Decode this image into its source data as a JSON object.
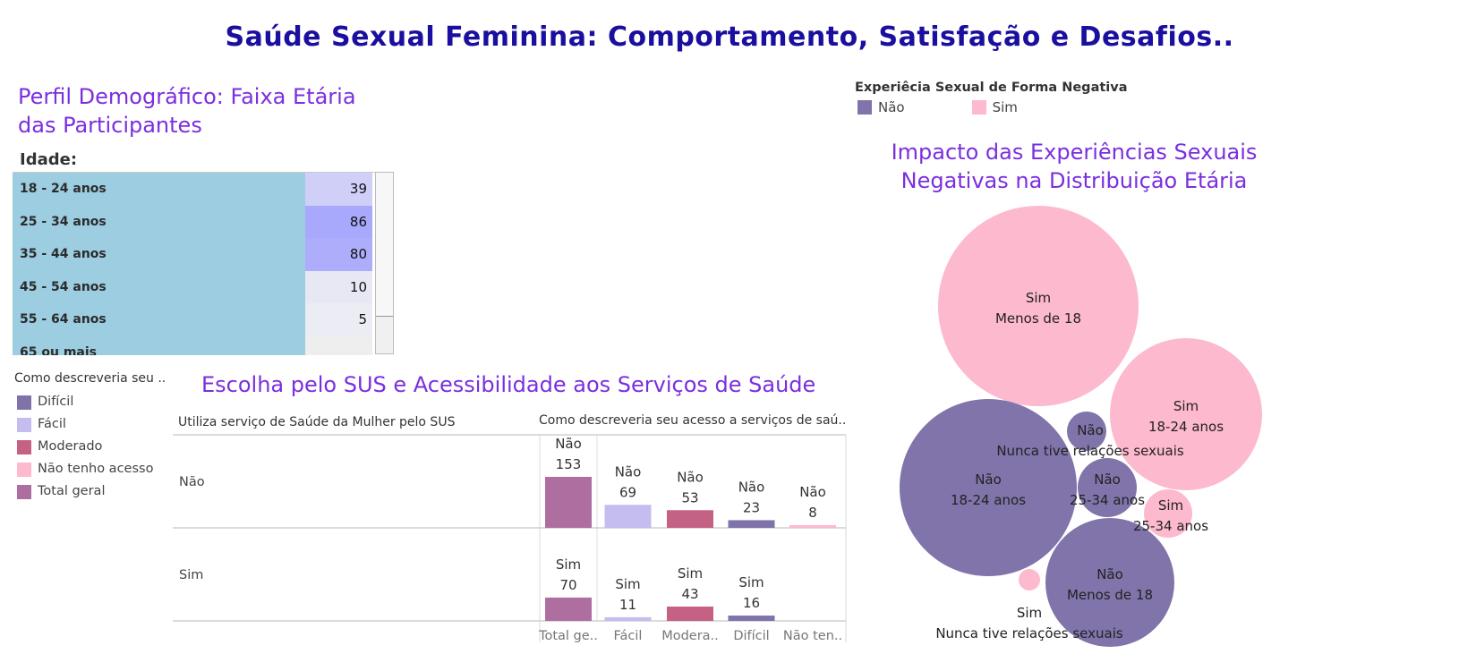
{
  "main_title": "Saúde Sexual Feminina: Comportamento, Satisfação e Desafios..",
  "age_section": {
    "title_line1": "Perfil Demográfico: Faixa Etária",
    "title_line2": "das Participantes",
    "column_label": "Idade:"
  },
  "sus_section": {
    "title": "Escolha pelo SUS e Acessibilidade aos Serviços de Saúde",
    "row_header": "Utiliza serviço de Saúde da Mulher pelo SUS",
    "col_header": "Como descreveria seu acesso a serviços de saú.."
  },
  "legend_left": {
    "title": "Como descreveria seu ..",
    "items": [
      {
        "label": "Difícil",
        "color": "#7f73aa"
      },
      {
        "label": "Fácil",
        "color": "#c5bdf0"
      },
      {
        "label": "Moderado",
        "color": "#c46185"
      },
      {
        "label": "Não tenho acesso",
        "color": "#fdb9cd"
      },
      {
        "label": "Total geral",
        "color": "#ae6fa0"
      }
    ]
  },
  "legend_right": {
    "title": "Experiêcia Sexual de Forma Negativa",
    "items": [
      {
        "label": "Não",
        "color": "#8074aa"
      },
      {
        "label": "Sim",
        "color": "#fdb9cd"
      }
    ]
  },
  "bubble_section": {
    "title_line1": "Impacto das Experiências Sexuais",
    "title_line2": "Negativas na Distribuição Etária"
  },
  "chart_data": [
    {
      "type": "table",
      "column_label": "Idade:",
      "categories": [
        "18 - 24 anos",
        "25 - 34 anos",
        "35 - 44 anos",
        "45 - 54 anos",
        "55 - 64 anos",
        "65 ou mais"
      ],
      "values": [
        39,
        86,
        80,
        10,
        5,
        null
      ]
    },
    {
      "type": "bar",
      "rows": [
        "Não",
        "Sim"
      ],
      "categories": [
        "Total ge..",
        "Fácil",
        "Modera..",
        "Difícil",
        "Não ten.."
      ],
      "series": [
        {
          "name": "Não",
          "values": [
            153,
            69,
            53,
            23,
            8
          ]
        },
        {
          "name": "Sim",
          "values": [
            70,
            11,
            43,
            16,
            null
          ]
        }
      ],
      "colors": [
        "#ae6fa0",
        "#c5bdf0",
        "#c46185",
        "#7f73aa",
        "#fdb9cd"
      ]
    },
    {
      "type": "bubble",
      "bubbles": [
        {
          "group": "Sim",
          "label": "Menos de 18",
          "color": "#fdb9cd"
        },
        {
          "group": "Sim",
          "label": "18-24 anos",
          "color": "#fdb9cd"
        },
        {
          "group": "Não",
          "label": "18-24 anos",
          "color": "#8074aa"
        },
        {
          "group": "Não",
          "label": "Menos de 18",
          "color": "#8074aa"
        },
        {
          "group": "Não",
          "label": "25-34 anos",
          "color": "#8074aa"
        },
        {
          "group": "Não",
          "label": "Nunca tive relações sexuais",
          "color": "#8074aa"
        },
        {
          "group": "Sim",
          "label": "25-34 anos",
          "color": "#fdb9cd"
        },
        {
          "group": "Sim",
          "label": "Nunca tive relações sexuais",
          "color": "#fdb9cd"
        }
      ]
    }
  ]
}
